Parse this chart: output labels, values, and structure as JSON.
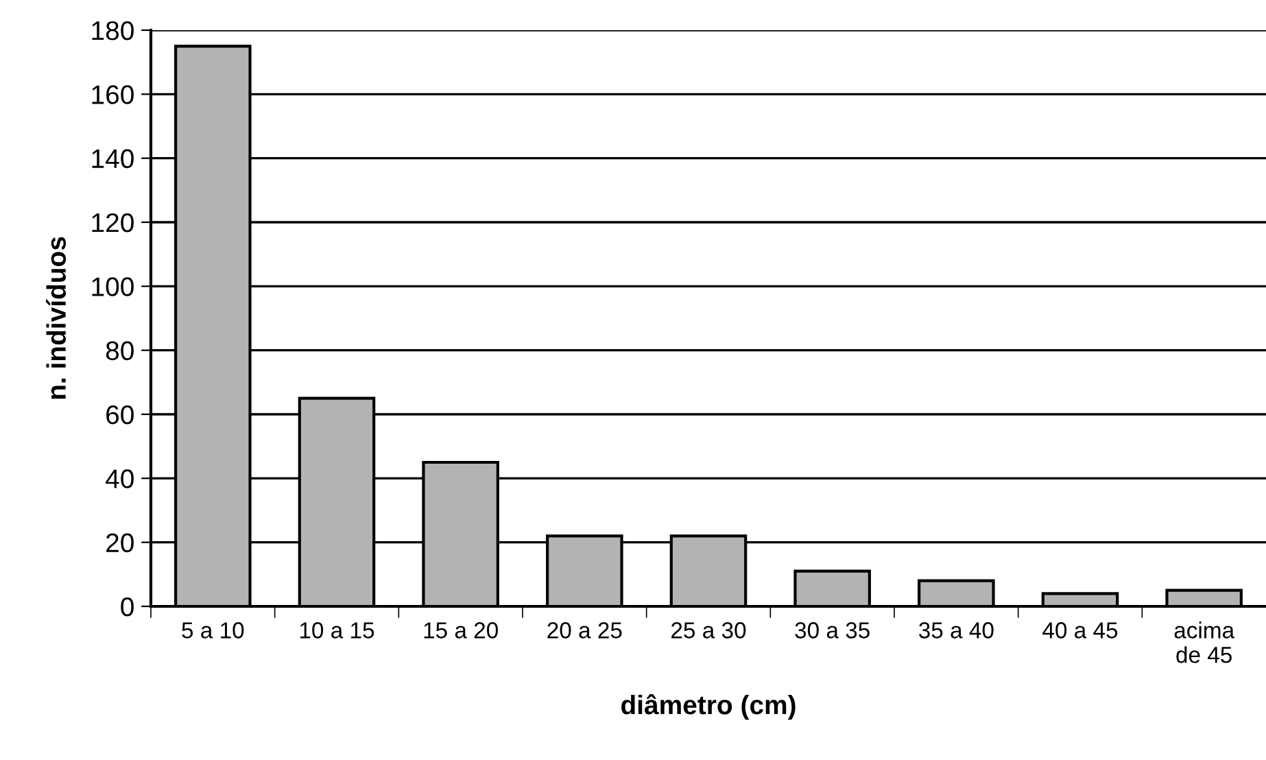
{
  "chart_data": {
    "type": "bar",
    "categories": [
      "5 a 10",
      "10 a 15",
      "15 a 20",
      "20 a 25",
      "25 a 30",
      "30 a 35",
      "35 a 40",
      "40 a 45",
      "acima\nde 45"
    ],
    "values": [
      175,
      65,
      45,
      22,
      22,
      11,
      8,
      4,
      5
    ],
    "color": "#b3b3b3",
    "xlabel": "diâmetro (cm)",
    "ylabel": "n. indivíduos",
    "ylim": [
      0,
      180
    ],
    "yticks": [
      0,
      20,
      40,
      60,
      80,
      100,
      120,
      140,
      160,
      180
    ],
    "grid": "y"
  }
}
